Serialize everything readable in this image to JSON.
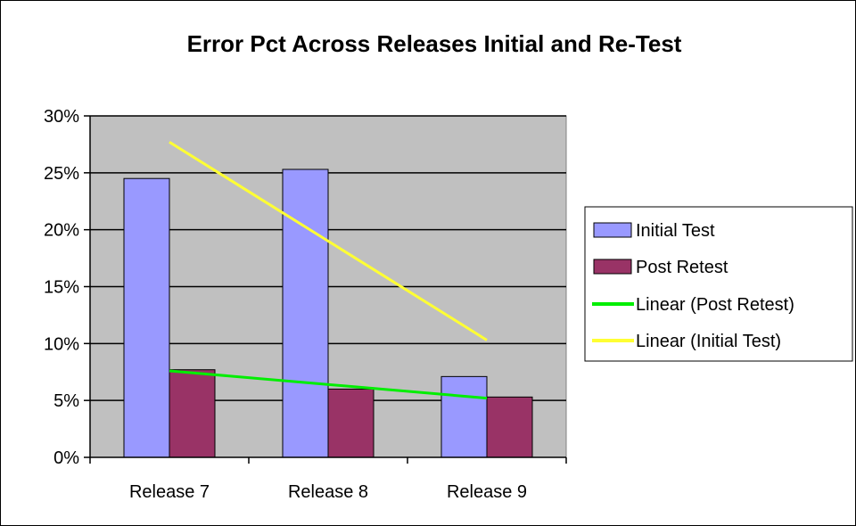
{
  "chart_data": {
    "type": "bar",
    "title": "Error Pct Across Releases Initial and Re-Test",
    "categories": [
      "Release 7",
      "Release 8",
      "Release 9"
    ],
    "ylim": [
      0,
      0.3
    ],
    "yticks": [
      "0%",
      "5%",
      "10%",
      "15%",
      "20%",
      "25%",
      "30%"
    ],
    "grid": true,
    "legend_position": "right",
    "series": [
      {
        "name": "Initial Test",
        "values": [
          0.245,
          0.253,
          0.071
        ],
        "color": "#9999ff"
      },
      {
        "name": "Post Retest",
        "values": [
          0.077,
          0.06,
          0.053
        ],
        "color": "#993366"
      }
    ],
    "trendlines": [
      {
        "name": "Linear (Post Retest)",
        "start": 0.076,
        "end": 0.052,
        "color": "#00ee00"
      },
      {
        "name": "Linear (Initial Test)",
        "start": 0.277,
        "end": 0.103,
        "color": "#ffff33"
      }
    ],
    "plot_background": "#c0c0c0"
  }
}
